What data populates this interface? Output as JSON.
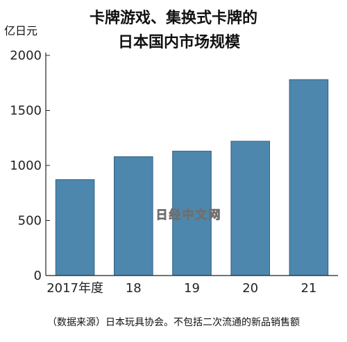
{
  "chart_data": {
    "type": "bar",
    "title_lines": [
      "卡牌游戏、集换式卡牌的",
      "日本国内市场规模"
    ],
    "ylabel": "亿日元",
    "categories": [
      "2017年度",
      "18",
      "19",
      "20",
      "21"
    ],
    "values": [
      872,
      1080,
      1130,
      1220,
      1780
    ],
    "ylim": [
      0,
      2000
    ],
    "yticks": [
      0,
      500,
      1000,
      1500,
      2000
    ],
    "grid": false,
    "bar_color": "#4e87ad",
    "source_note": "（数据来源）日本玩具协会。不包括二次流通的新品销售额",
    "watermark": "日经中文网"
  }
}
